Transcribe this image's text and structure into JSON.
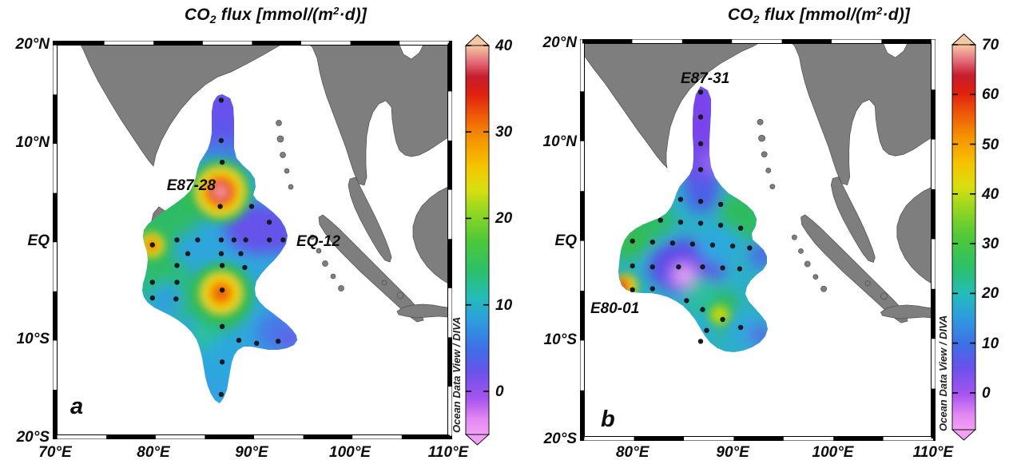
{
  "figure": {
    "title": {
      "pre": "CO",
      "sub": "2",
      "mid": " flux [mmol/(m",
      "sup": "2",
      "post": "·d)]"
    },
    "credit": "Ocean Data View / DIVA",
    "panels": [
      {
        "label": "a",
        "lat_ticks": [
          "20°N",
          "10°N",
          "EQ",
          "10°S",
          "20°S"
        ],
        "lon_ticks": [
          "70°E",
          "80°E",
          "90°E",
          "100°E",
          "110°E"
        ],
        "stations": [
          {
            "name": "E87-28"
          },
          {
            "name": "EQ-12"
          }
        ],
        "colorbar_ticks": [
          "40",
          "30",
          "20",
          "10",
          "0"
        ]
      },
      {
        "label": "b",
        "lat_ticks": [
          "20°N",
          "10°N",
          "EQ",
          "10°S",
          "20°S"
        ],
        "lon_ticks": [
          "80°E",
          "90°E",
          "100°E",
          "110°E"
        ],
        "stations": [
          {
            "name": "E87-31"
          },
          {
            "name": "E80-01"
          }
        ],
        "colorbar_ticks": [
          "70",
          "60",
          "50",
          "40",
          "30",
          "20",
          "10",
          "0"
        ]
      }
    ]
  },
  "chart_data": [
    {
      "type": "heatmap",
      "panel": "a",
      "title": "CO2 flux [mmol/(m^2·d)]",
      "region": "Bay of Bengal / eastern Indian Ocean",
      "lon_range": [
        70,
        110
      ],
      "lat_range": [
        -20,
        20
      ],
      "lon_ticks": [
        70,
        80,
        90,
        100,
        110
      ],
      "lat_ticks": [
        20,
        10,
        0,
        -10,
        -20
      ],
      "grid": false,
      "colorbar": {
        "min": -5,
        "max": 40,
        "ticks": [
          0,
          10,
          20,
          30,
          40
        ],
        "palette": "ODV rainbow: magenta -> violet -> blue -> cyan -> green -> yellow -> orange -> red -> peach",
        "arrows": "both ends"
      },
      "annotated_stations": [
        {
          "name": "E87-28",
          "lon": 86.8,
          "lat": 3.4,
          "approx_peak_value": 37
        },
        {
          "name": "EQ-12",
          "lon": 94.0,
          "lat": 0.0,
          "approx_value": 5
        }
      ],
      "hotspots": [
        {
          "lon": 86.8,
          "lat": 3.4,
          "approx_peak": 37,
          "note": "red/pink core, E87-28"
        },
        {
          "lon": 79.9,
          "lat": -0.5,
          "approx_peak": 27,
          "note": "orange spot at western edge"
        },
        {
          "lon": 86.9,
          "lat": -5.2,
          "approx_peak": 28,
          "note": "orange/yellow southern spot"
        }
      ],
      "field_summary": "Interpolated DIVA field: violet/blue northern tongue along 87E (values ~0-6), blue-violet patch east of 88-93E near equator (~3-8), greens ~15-20 on the west side, cyan ~8-12 elsewhere, blue-violet southeast lobe tip near 94E 10S",
      "land_masses": [
        "India",
        "Sri Lanka",
        "Indochina with Malay Peninsula",
        "Andaman-Nicobar islets",
        "Sumatra",
        "Borneo",
        "Java"
      ],
      "station_dots": [
        [
          86.9,
          14.2
        ],
        [
          86.9,
          10.1
        ],
        [
          87.0,
          7.9
        ],
        [
          86.8,
          3.4
        ],
        [
          90.0,
          3.4
        ],
        [
          91.8,
          1.8
        ],
        [
          82.4,
          0.0
        ],
        [
          84.5,
          0.0
        ],
        [
          86.9,
          0.0
        ],
        [
          88.2,
          0.0
        ],
        [
          89.4,
          0.0
        ],
        [
          91.8,
          0.0
        ],
        [
          93.2,
          0.0
        ],
        [
          79.9,
          -0.5
        ],
        [
          83.5,
          -1.4
        ],
        [
          86.9,
          -1.4
        ],
        [
          88.9,
          -1.4
        ],
        [
          82.4,
          -2.6
        ],
        [
          87.0,
          -2.6
        ],
        [
          89.3,
          -2.8
        ],
        [
          79.9,
          -4.3
        ],
        [
          82.4,
          -4.3
        ],
        [
          79.9,
          -5.9
        ],
        [
          82.3,
          -6.0
        ],
        [
          87.0,
          -5.1
        ],
        [
          87.0,
          -8.8
        ],
        [
          88.7,
          -10.2
        ],
        [
          90.5,
          -10.5
        ],
        [
          92.7,
          -10.3
        ],
        [
          87.0,
          -12.4
        ],
        [
          86.9,
          -15.7
        ]
      ]
    },
    {
      "type": "heatmap",
      "panel": "b",
      "title": "CO2 flux [mmol/(m^2·d)]",
      "region": "Bay of Bengal / eastern Indian Ocean",
      "lon_range": [
        75,
        110
      ],
      "lat_range": [
        -20,
        20
      ],
      "lon_ticks": [
        80,
        90,
        100,
        110
      ],
      "lat_ticks": [
        20,
        10,
        0,
        -10,
        -20
      ],
      "grid": false,
      "colorbar": {
        "min": -5,
        "max": 70,
        "ticks": [
          0,
          10,
          20,
          30,
          40,
          50,
          60,
          70
        ],
        "palette": "ODV rainbow: magenta -> violet -> blue -> cyan -> green -> yellow -> orange -> red -> peach",
        "arrows": "both ends"
      },
      "annotated_stations": [
        {
          "name": "E87-31",
          "lon": 86.8,
          "lat": 14.9,
          "approx_value": 3
        },
        {
          "name": "E80-01",
          "lon": 80.0,
          "lat": -4.0,
          "approx_peak_value": 58
        }
      ],
      "hotspots": [
        {
          "lon": 79.7,
          "lat": -4.0,
          "approx_peak": 58,
          "note": "red strip at western edge, E80-01"
        },
        {
          "lon": 88.7,
          "lat": -7.5,
          "approx_peak": 38,
          "note": "small yellow-green spot in southern lobe"
        },
        {
          "lon": 85.1,
          "lat": -3.5,
          "approx_value": -3,
          "note": "pale magenta-pink low patch"
        }
      ],
      "field_summary": "Violet northern tongue along 87E (~0-5), greens ~22-30 on northwest and center-east, central blue-violet patch with pale pink core (~-3 to 5) south of the equator, cyan ~12-18 elsewhere, small red maximum at the western boundary near 80E 4S",
      "land_masses": [
        "India",
        "Sri Lanka",
        "Indochina with Malay Peninsula",
        "Andaman-Nicobar islets",
        "Sumatra",
        "Borneo",
        "Java"
      ],
      "station_dots": [
        [
          86.8,
          14.9
        ],
        [
          86.8,
          12.4
        ],
        [
          86.8,
          9.7
        ],
        [
          86.8,
          7.1
        ],
        [
          84.8,
          4.1
        ],
        [
          86.8,
          3.9
        ],
        [
          88.8,
          3.6
        ],
        [
          82.8,
          2.0
        ],
        [
          84.8,
          1.8
        ],
        [
          86.8,
          1.7
        ],
        [
          88.8,
          1.5
        ],
        [
          90.8,
          1.2
        ],
        [
          80.0,
          -0.1
        ],
        [
          82.0,
          -0.2
        ],
        [
          84.0,
          -0.3
        ],
        [
          86.0,
          -0.4
        ],
        [
          88.0,
          -0.5
        ],
        [
          90.0,
          -0.6
        ],
        [
          91.7,
          -0.8
        ],
        [
          80.0,
          -2.6
        ],
        [
          82.0,
          -2.7
        ],
        [
          84.6,
          -2.7
        ],
        [
          87.0,
          -2.7
        ],
        [
          89.0,
          -2.8
        ],
        [
          90.7,
          -2.9
        ],
        [
          80.0,
          -5.0
        ],
        [
          82.0,
          -4.9
        ],
        [
          85.4,
          -6.1
        ],
        [
          87.0,
          -7.0
        ],
        [
          89.0,
          -8.0
        ],
        [
          90.8,
          -8.8
        ],
        [
          87.4,
          -9.1
        ],
        [
          86.8,
          -10.2
        ]
      ]
    }
  ]
}
